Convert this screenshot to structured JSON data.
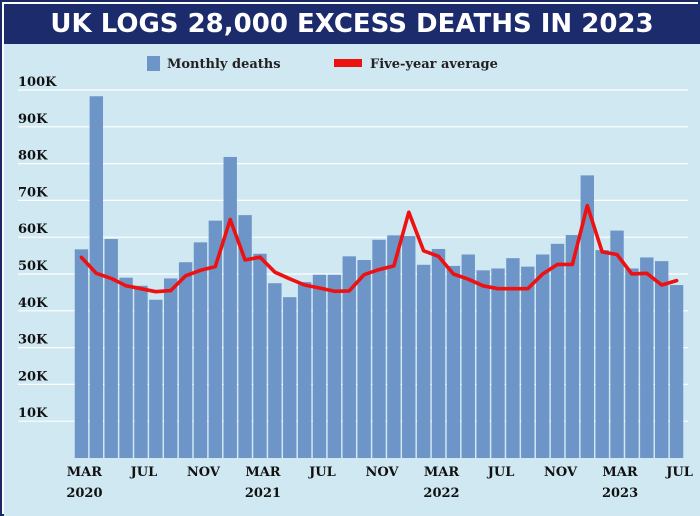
{
  "title": "UK LOGS 28,000 EXCESS DEATHS IN 2023",
  "chart_data": {
    "type": "bar",
    "ylim": [
      0,
      100000
    ],
    "grid": true,
    "legend_placement": "top-center",
    "colors": {
      "bars": "#6e95c8",
      "line": "#ee1111",
      "background": "#cfe8f2",
      "title_bg": "#1b2b6b"
    },
    "y_ticks": [
      {
        "value": 10000,
        "label": "10K"
      },
      {
        "value": 20000,
        "label": "20K"
      },
      {
        "value": 30000,
        "label": "30K"
      },
      {
        "value": 40000,
        "label": "40K"
      },
      {
        "value": 50000,
        "label": "50K"
      },
      {
        "value": 60000,
        "label": "60K"
      },
      {
        "value": 70000,
        "label": "70K"
      },
      {
        "value": 80000,
        "label": "80K"
      },
      {
        "value": 90000,
        "label": "90K"
      },
      {
        "value": 100000,
        "label": "100K"
      }
    ],
    "x_ticks": [
      {
        "index": 0,
        "month": "MAR",
        "year": "2020"
      },
      {
        "index": 4,
        "month": "JUL",
        "year": ""
      },
      {
        "index": 8,
        "month": "NOV",
        "year": ""
      },
      {
        "index": 12,
        "month": "MAR",
        "year": "2021"
      },
      {
        "index": 16,
        "month": "JUL",
        "year": ""
      },
      {
        "index": 20,
        "month": "NOV",
        "year": ""
      },
      {
        "index": 24,
        "month": "MAR",
        "year": "2022"
      },
      {
        "index": 28,
        "month": "JUL",
        "year": ""
      },
      {
        "index": 32,
        "month": "NOV",
        "year": ""
      },
      {
        "index": 36,
        "month": "MAR",
        "year": "2023"
      },
      {
        "index": 40,
        "month": "JUL",
        "year": ""
      }
    ],
    "x": [
      "Mar 2020",
      "Apr 2020",
      "May 2020",
      "Jun 2020",
      "Jul 2020",
      "Aug 2020",
      "Sep 2020",
      "Oct 2020",
      "Nov 2020",
      "Dec 2020",
      "Jan 2021",
      "Feb 2021",
      "Mar 2021",
      "Apr 2021",
      "May 2021",
      "Jun 2021",
      "Jul 2021",
      "Aug 2021",
      "Sep 2021",
      "Oct 2021",
      "Nov 2021",
      "Dec 2021",
      "Jan 2022",
      "Feb 2022",
      "Mar 2022",
      "Apr 2022",
      "May 2022",
      "Jun 2022",
      "Jul 2022",
      "Aug 2022",
      "Sep 2022",
      "Oct 2022",
      "Nov 2022",
      "Dec 2022",
      "Jan 2023",
      "Feb 2023",
      "Mar 2023",
      "Apr 2023",
      "May 2023",
      "Jun 2023",
      "Jul 2023"
    ],
    "series": [
      {
        "name": "Monthly deaths",
        "type": "bar",
        "values": [
          56700,
          98300,
          59500,
          49000,
          46800,
          43000,
          48800,
          53200,
          58600,
          64500,
          81800,
          66000,
          55500,
          47500,
          43700,
          47800,
          49800,
          49800,
          54800,
          53800,
          59300,
          60500,
          60300,
          52500,
          56800,
          52200,
          55300,
          51000,
          51500,
          54300,
          52000,
          55300,
          58200,
          60600,
          76800,
          56500,
          61800,
          51500,
          54500,
          53500,
          47000
        ]
      },
      {
        "name": "Five-year average",
        "type": "line",
        "values": [
          54500,
          50200,
          48800,
          46800,
          46000,
          45200,
          45500,
          49500,
          51000,
          52000,
          64800,
          53800,
          54600,
          50500,
          48700,
          47000,
          46200,
          45300,
          45400,
          49800,
          51200,
          52200,
          66800,
          56300,
          54800,
          50000,
          48600,
          46800,
          46000,
          46000,
          46000,
          50000,
          52600,
          52600,
          68600,
          56000,
          55300,
          50000,
          50200,
          47000,
          48200
        ]
      }
    ]
  }
}
